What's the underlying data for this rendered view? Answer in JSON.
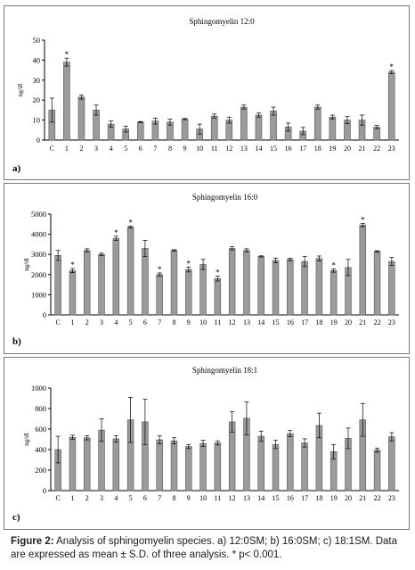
{
  "caption": {
    "label": "Figure 2:",
    "text": "Analysis of sphingomyelin species. a) 12:0SM; b) 16:0SM; c) 18:1SM. Data are expressed as mean ± S.D. of three analysis. * p< 0.001."
  },
  "colors": {
    "bar": "#9b9b9b",
    "bar_edge": "#555555",
    "axis": "#000000"
  },
  "chart_data": [
    {
      "panel": "a)",
      "type": "bar",
      "title": "Sphingomyelin 12:0",
      "ylabel": "ng/dl",
      "ylim": [
        0,
        50
      ],
      "yticks": [
        0,
        10,
        20,
        30,
        40,
        50
      ],
      "categories": [
        "C",
        "1",
        "2",
        "3",
        "4",
        "5",
        "6",
        "7",
        "8",
        "9",
        "10",
        "11",
        "12",
        "13",
        "14",
        "15",
        "16",
        "17",
        "18",
        "19",
        "20",
        "21",
        "22",
        "23"
      ],
      "values": [
        15,
        39,
        21.5,
        15,
        8,
        5.5,
        9,
        9.5,
        9,
        10.5,
        5.5,
        12,
        10,
        16.5,
        12.5,
        14.5,
        6.5,
        4.5,
        16.5,
        11.5,
        10,
        10,
        6.5,
        34
      ],
      "errors": [
        6,
        2,
        1,
        2.5,
        1.5,
        1.5,
        0.3,
        1.5,
        1.5,
        0.3,
        2.5,
        1,
        1.5,
        1,
        1,
        2,
        2,
        1.8,
        1,
        1,
        1.8,
        2.5,
        0.8,
        0.8
      ],
      "significant": [
        1,
        23
      ]
    },
    {
      "panel": "b)",
      "type": "bar",
      "title": "Sphingomyelin 16:0",
      "ylabel": "ng/dl",
      "ylim": [
        0,
        5000
      ],
      "yticks": [
        0,
        1000,
        2000,
        3000,
        4000,
        5000
      ],
      "categories": [
        "C",
        "1",
        "2",
        "3",
        "4",
        "5",
        "6",
        "7",
        "8",
        "9",
        "10",
        "11",
        "12",
        "13",
        "14",
        "15",
        "16",
        "17",
        "18",
        "19",
        "20",
        "21",
        "22",
        "23"
      ],
      "values": [
        2950,
        2200,
        3200,
        3000,
        3800,
        4350,
        3300,
        2000,
        3200,
        2250,
        2500,
        1800,
        3300,
        3200,
        2900,
        2700,
        2750,
        2650,
        2800,
        2200,
        2350,
        4450,
        3150,
        2650
      ],
      "errors": [
        250,
        100,
        80,
        60,
        100,
        50,
        400,
        80,
        30,
        120,
        250,
        120,
        80,
        80,
        30,
        120,
        60,
        250,
        120,
        80,
        400,
        80,
        30,
        200
      ],
      "significant": [
        1,
        4,
        5,
        7,
        9,
        11,
        19,
        21
      ]
    },
    {
      "panel": "c)",
      "type": "bar",
      "title": "Sphingomyelin 18:1",
      "ylabel": "ng/dl",
      "ylim": [
        0,
        1000
      ],
      "yticks": [
        0,
        200,
        400,
        600,
        800,
        1000
      ],
      "categories": [
        "C",
        "1",
        "2",
        "3",
        "4",
        "5",
        "6",
        "7",
        "8",
        "9",
        "10",
        "11",
        "12",
        "13",
        "14",
        "15",
        "16",
        "17",
        "18",
        "19",
        "20",
        "21",
        "22",
        "23"
      ],
      "values": [
        400,
        520,
        515,
        590,
        505,
        690,
        670,
        495,
        485,
        430,
        460,
        465,
        670,
        705,
        530,
        450,
        555,
        465,
        635,
        380,
        510,
        690,
        395,
        525
      ],
      "errors": [
        130,
        20,
        20,
        110,
        30,
        220,
        220,
        40,
        30,
        20,
        30,
        20,
        100,
        160,
        50,
        40,
        30,
        40,
        120,
        70,
        100,
        160,
        20,
        40
      ],
      "significant": []
    }
  ]
}
